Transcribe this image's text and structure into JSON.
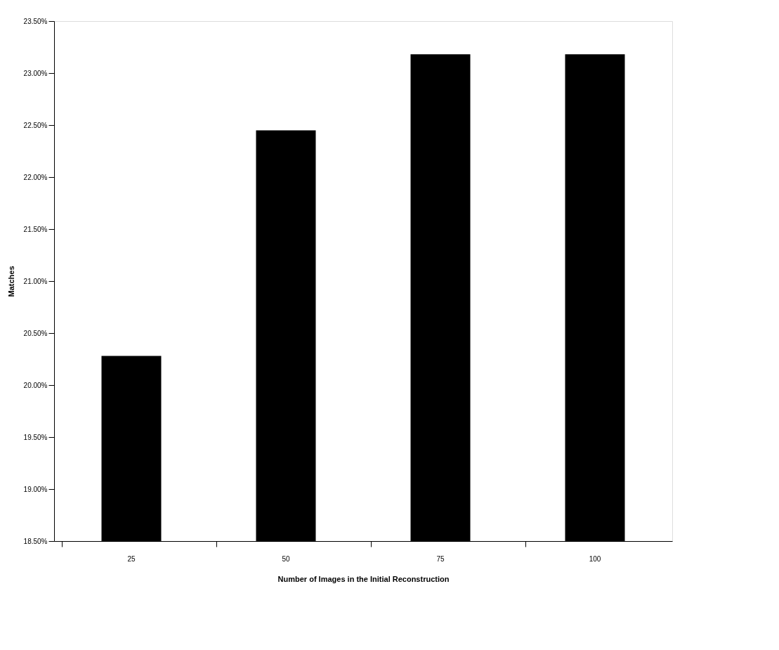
{
  "chart_data": {
    "type": "bar",
    "xlabel": "Number of Images in the Initial Reconstruction",
    "ylabel": "Matches",
    "categories": [
      "25",
      "50",
      "75",
      "100"
    ],
    "values": [
      20.28,
      22.45,
      23.18,
      23.18
    ],
    "color": "#000000",
    "ylim": [
      18.5,
      23.5
    ],
    "yticks": [
      {
        "value": 18.5,
        "label": "18.50%"
      },
      {
        "value": 19.0,
        "label": "19.00%"
      },
      {
        "value": 19.5,
        "label": "19.50%"
      },
      {
        "value": 20.0,
        "label": "20.00%"
      },
      {
        "value": 20.5,
        "label": "20.50%"
      },
      {
        "value": 21.0,
        "label": "21.00%"
      },
      {
        "value": 21.5,
        "label": "21.50%"
      },
      {
        "value": 22.0,
        "label": "22.00%"
      },
      {
        "value": 22.5,
        "label": "22.50%"
      },
      {
        "value": 23.0,
        "label": "23.00%"
      },
      {
        "value": 23.5,
        "label": "23.50%"
      }
    ],
    "grid": false
  }
}
